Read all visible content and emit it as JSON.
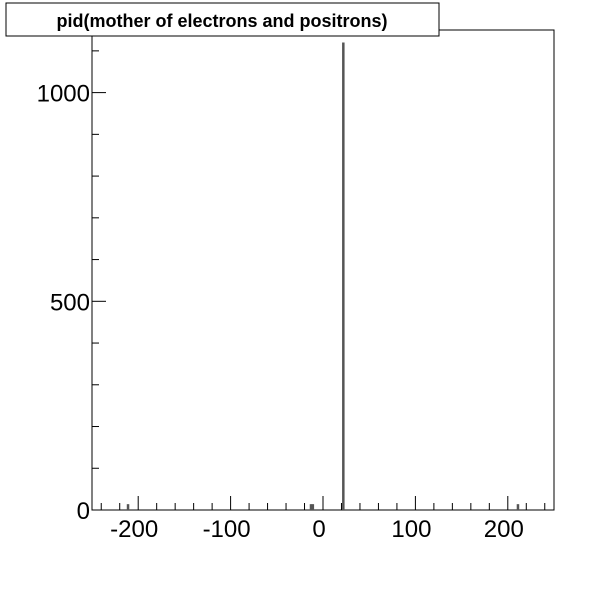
{
  "chart_data": {
    "type": "bar",
    "title": "pid(mother of electrons and positrons)",
    "xlabel": "",
    "ylabel": "",
    "xlim": [
      -250,
      250
    ],
    "ylim": [
      0,
      1150
    ],
    "grid": false,
    "x_ticks": [
      -200,
      -100,
      0,
      100,
      200
    ],
    "y_ticks": [
      0,
      500,
      1000
    ],
    "x": [
      -211,
      -13,
      -11,
      22,
      211
    ],
    "values": [
      14,
      14,
      14,
      1120,
      14
    ],
    "bar_color": "#555555"
  }
}
